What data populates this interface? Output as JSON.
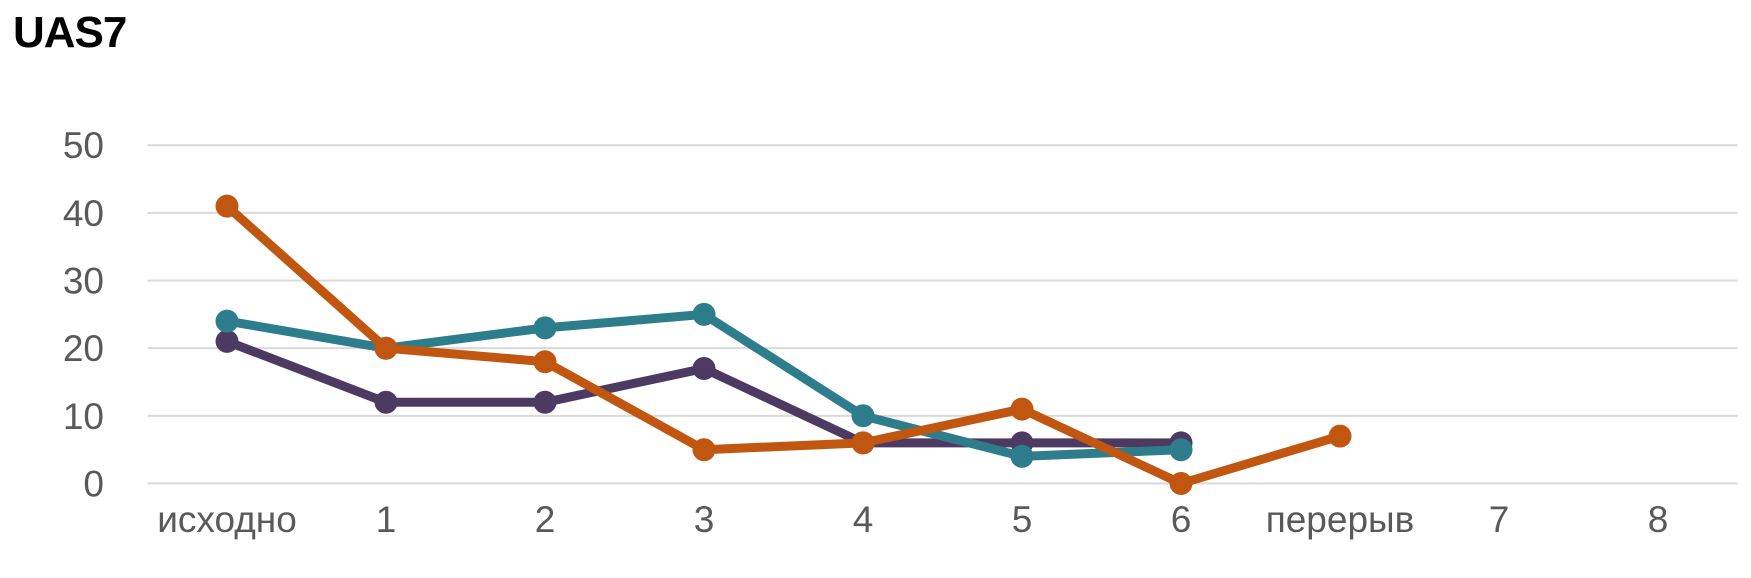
{
  "title": "UAS7",
  "chart_data": {
    "type": "line",
    "title": "UAS7",
    "xlabel": "",
    "ylabel": "",
    "categories": [
      "исходно",
      "1",
      "2",
      "3",
      "4",
      "5",
      "6",
      "перерыв",
      "7",
      "8"
    ],
    "series": [
      {
        "name": "purple",
        "color": "#4D3A63",
        "values": [
          21,
          12,
          12,
          17,
          6,
          6,
          6,
          null,
          null,
          null
        ]
      },
      {
        "name": "teal",
        "color": "#2E7D8D",
        "values": [
          24,
          20,
          23,
          25,
          10,
          4,
          5,
          null,
          null,
          null
        ]
      },
      {
        "name": "orange",
        "color": "#C0560F",
        "values": [
          41,
          20,
          18,
          5,
          6,
          11,
          0,
          7,
          null,
          null
        ]
      }
    ],
    "ylim": [
      0,
      50
    ],
    "yticks": [
      0,
      10,
      20,
      30,
      40,
      50
    ],
    "grid": true,
    "legend_position": "none",
    "axis_label_color": "#595959",
    "gridline_color": "#D9D9D9",
    "background_color": "#FFFFFF",
    "line_width": 9,
    "marker_radius": 11.5
  }
}
